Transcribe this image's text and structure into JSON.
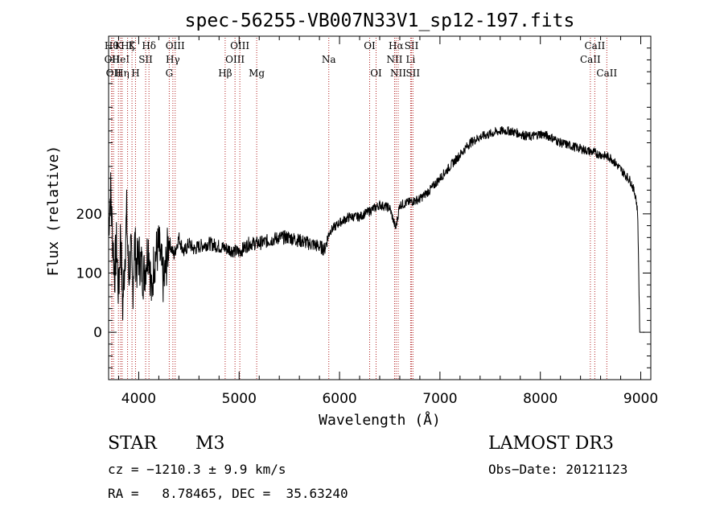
{
  "chart_data": {
    "type": "line",
    "title": "spec-56255-VB007N33V1_sp12-197.fits",
    "xlabel": "Wavelength (Å)",
    "ylabel": "Flux (relative)",
    "xlim": [
      3700,
      9100
    ],
    "ylim": [
      -80,
      500
    ],
    "xticks": [
      4000,
      5000,
      6000,
      7000,
      8000,
      9000
    ],
    "yticks": [
      0,
      100,
      200
    ],
    "spectrum": [
      [
        3700,
        180
      ],
      [
        3720,
        240
      ],
      [
        3740,
        160
      ],
      [
        3760,
        100
      ],
      [
        3780,
        150
      ],
      [
        3800,
        60
      ],
      [
        3820,
        175
      ],
      [
        3840,
        40
      ],
      [
        3860,
        120
      ],
      [
        3880,
        200
      ],
      [
        3900,
        90
      ],
      [
        3920,
        140
      ],
      [
        3940,
        70
      ],
      [
        3960,
        150
      ],
      [
        3980,
        110
      ],
      [
        4000,
        130
      ],
      [
        4050,
        95
      ],
      [
        4100,
        150
      ],
      [
        4130,
        55
      ],
      [
        4150,
        120
      ],
      [
        4200,
        145
      ],
      [
        4250,
        80
      ],
      [
        4300,
        155
      ],
      [
        4350,
        130
      ],
      [
        4400,
        160
      ],
      [
        4450,
        135
      ],
      [
        4500,
        150
      ],
      [
        4550,
        140
      ],
      [
        4600,
        145
      ],
      [
        4700,
        150
      ],
      [
        4800,
        145
      ],
      [
        4900,
        140
      ],
      [
        5000,
        135
      ],
      [
        5100,
        150
      ],
      [
        5200,
        150
      ],
      [
        5300,
        155
      ],
      [
        5400,
        160
      ],
      [
        5500,
        160
      ],
      [
        5600,
        155
      ],
      [
        5700,
        150
      ],
      [
        5800,
        145
      ],
      [
        5850,
        140
      ],
      [
        5900,
        170
      ],
      [
        6000,
        185
      ],
      [
        6100,
        195
      ],
      [
        6200,
        195
      ],
      [
        6300,
        205
      ],
      [
        6400,
        215
      ],
      [
        6500,
        210
      ],
      [
        6560,
        175
      ],
      [
        6600,
        215
      ],
      [
        6700,
        220
      ],
      [
        6800,
        225
      ],
      [
        6900,
        240
      ],
      [
        7000,
        260
      ],
      [
        7100,
        280
      ],
      [
        7200,
        300
      ],
      [
        7300,
        320
      ],
      [
        7400,
        330
      ],
      [
        7500,
        335
      ],
      [
        7600,
        340
      ],
      [
        7700,
        340
      ],
      [
        7800,
        335
      ],
      [
        7900,
        330
      ],
      [
        8000,
        335
      ],
      [
        8100,
        330
      ],
      [
        8200,
        320
      ],
      [
        8300,
        315
      ],
      [
        8400,
        310
      ],
      [
        8500,
        305
      ],
      [
        8600,
        300
      ],
      [
        8700,
        295
      ],
      [
        8800,
        275
      ],
      [
        8900,
        255
      ],
      [
        8950,
        230
      ],
      [
        8970,
        200
      ],
      [
        8985,
        50
      ],
      [
        8990,
        0
      ]
    ],
    "lines": [
      {
        "w": 3730,
        "label": "Hθ",
        "row": 0
      },
      {
        "w": 3734,
        "label": "OII",
        "row": 1
      },
      {
        "w": 3750,
        "label": "OII",
        "row": 2
      },
      {
        "w": 3798,
        "label": "K",
        "row": 0
      },
      {
        "w": 3820,
        "label": "HeI",
        "row": 1
      },
      {
        "w": 3835,
        "label": "Hη",
        "row": 2
      },
      {
        "w": 3889,
        "label": "Hζ",
        "row": 0
      },
      {
        "w": 3933,
        "label": "K",
        "row": 0
      },
      {
        "w": 3968,
        "label": "H",
        "row": 2
      },
      {
        "w": 4069,
        "label": "SII",
        "row": 1
      },
      {
        "w": 4102,
        "label": "Hδ",
        "row": 0
      },
      {
        "w": 4304,
        "label": "G",
        "row": 2
      },
      {
        "w": 4340,
        "label": "Hγ",
        "row": 1
      },
      {
        "w": 4363,
        "label": "OIII",
        "row": 0
      },
      {
        "w": 4861,
        "label": "Hβ",
        "row": 2
      },
      {
        "w": 4959,
        "label": "OIII",
        "row": 1
      },
      {
        "w": 5007,
        "label": "OIII",
        "row": 0
      },
      {
        "w": 5175,
        "label": "Mg",
        "row": 2
      },
      {
        "w": 5893,
        "label": "Na",
        "row": 1
      },
      {
        "w": 6300,
        "label": "OI",
        "row": 0
      },
      {
        "w": 6364,
        "label": "OI",
        "row": 2
      },
      {
        "w": 6548,
        "label": "NII",
        "row": 1
      },
      {
        "w": 6563,
        "label": "Hα",
        "row": 0
      },
      {
        "w": 6584,
        "label": "NII",
        "row": 2
      },
      {
        "w": 6708,
        "label": "Li",
        "row": 1
      },
      {
        "w": 6717,
        "label": "SII",
        "row": 0
      },
      {
        "w": 6731,
        "label": "SII",
        "row": 2
      },
      {
        "w": 8498,
        "label": "CaII",
        "row": 1
      },
      {
        "w": 8542,
        "label": "CaII",
        "row": 0
      },
      {
        "w": 8662,
        "label": "CaII",
        "row": 2
      }
    ],
    "line_color": "#b22222"
  },
  "info": {
    "class": "STAR",
    "subclass": "M3",
    "survey": "LAMOST DR3",
    "cz": "cz = −1210.3 ± 9.9 km/s",
    "obsdate": "Obs−Date: 20121123",
    "radec": "RA =   8.78465, DEC =  35.63240"
  }
}
